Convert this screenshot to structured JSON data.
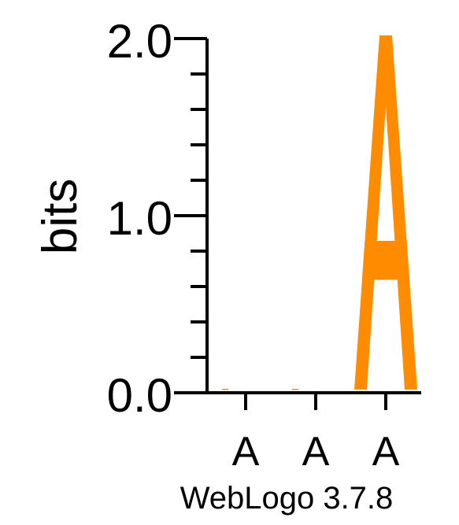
{
  "chart_data": {
    "type": "sequence-logo",
    "ylabel": "bits",
    "ylim": [
      0,
      2.0
    ],
    "y_tick_labels": [
      "0.0",
      "1.0",
      "2.0"
    ],
    "y_major_ticks": [
      0,
      1.0,
      2.0
    ],
    "y_minor_step": 0.2,
    "positions": [
      "A",
      "A",
      "A"
    ],
    "stacks": [
      {
        "position_label": "A",
        "letters": [
          {
            "letter": "A",
            "bits": 0.01
          }
        ]
      },
      {
        "position_label": "A",
        "letters": [
          {
            "letter": "A",
            "bits": 0.005
          }
        ]
      },
      {
        "position_label": "A",
        "letters": [
          {
            "letter": "A",
            "bits": 2.0
          }
        ]
      }
    ],
    "colors": {
      "A": "#FF8C00",
      "axis": "#000000"
    },
    "footer": "WebLogo 3.7.8"
  }
}
